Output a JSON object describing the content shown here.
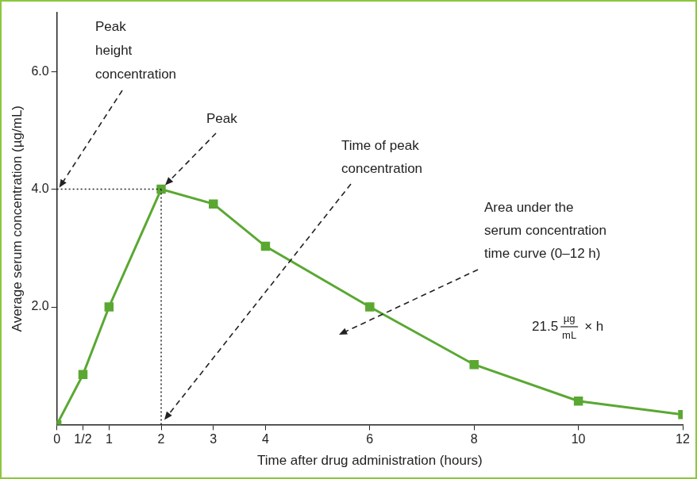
{
  "chart_data": {
    "type": "line",
    "x_label": "Time after drug administration (hours)",
    "y_label": "Average serum concentration (µg/mL)",
    "x": [
      0,
      0.5,
      1,
      2,
      3,
      4,
      6,
      8,
      10,
      12
    ],
    "values": [
      0,
      0.85,
      2.0,
      4.0,
      3.75,
      3.03,
      2.0,
      1.02,
      0.4,
      0.17
    ],
    "color": "#5aa832",
    "marker": "square",
    "line_style": "solid",
    "xlim": [
      0,
      12
    ],
    "xticks": [
      0,
      {
        "value": 0.5,
        "label": "1/2"
      },
      1,
      2,
      3,
      4,
      6,
      8,
      10,
      12
    ],
    "ylim": [
      0,
      7
    ],
    "yticks": [
      {
        "value": 2,
        "label": "2.0"
      },
      {
        "value": 4,
        "label": "4.0"
      },
      {
        "value": 6,
        "label": "6.0"
      }
    ],
    "grid": false,
    "annotations": {
      "peak_height": [
        "Peak",
        "height",
        "concentration"
      ],
      "peak": "Peak",
      "time_of_peak": [
        "Time of peak",
        "concentration"
      ],
      "auc_label": [
        "Area under the",
        "serum concentration",
        "time curve (0–12 h)"
      ],
      "auc": {
        "value": 21.5,
        "unit_numerator": "µg",
        "unit_denominator": "mL",
        "unit_suffix": "× h"
      }
    }
  }
}
